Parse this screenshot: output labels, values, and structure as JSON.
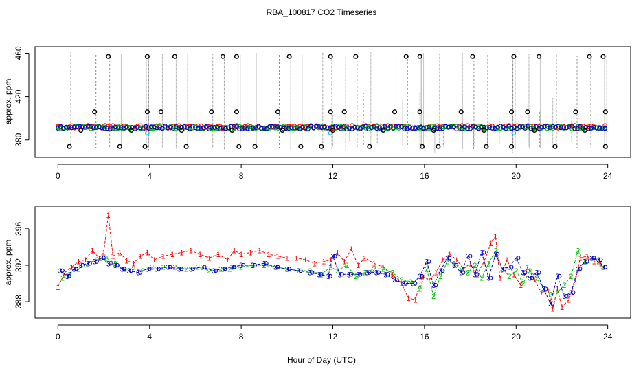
{
  "title": "RBA_100817  CO2 Timeseries",
  "xlabel": "Hour of Day (UTC)",
  "colors": {
    "series1": "#ff0000",
    "series2": "#00c000",
    "series3": "#0000cc",
    "outlier": "#000000",
    "cyan": "#00c8dc",
    "bars": "#888888"
  },
  "chart_data": [
    {
      "type": "scatter",
      "ylabel": "approx. ppm",
      "xlim": [
        -1,
        25
      ],
      "ylim": [
        364,
        466
      ],
      "xticks": [
        0,
        4,
        8,
        12,
        16,
        20,
        24
      ],
      "yticks": [
        380,
        420,
        460
      ],
      "outliers_high_hours": [
        2.2,
        3.9,
        5.1,
        7.2,
        7.8,
        10.1,
        11.9,
        13.0,
        15.2,
        15.8,
        18.1,
        19.9,
        21.0,
        23.2,
        23.8
      ],
      "outliers_mid_hours": [
        1.6,
        3.9,
        4.5,
        6.7,
        7.8,
        9.6,
        11.9,
        12.5,
        14.7,
        15.8,
        17.6,
        19.8,
        20.5,
        22.6,
        23.9
      ],
      "outliers_low_hours": [
        0.5,
        2.7,
        3.8,
        5.6,
        7.9,
        8.6,
        10.6,
        11.5,
        13.6,
        15.9,
        16.6,
        18.7,
        19.8,
        21.7,
        23.9
      ],
      "outlier_high_value": 457,
      "outlier_mid_value": 406,
      "outlier_low_value": 374,
      "baseline_value": 391.5
    },
    {
      "type": "line",
      "ylabel": "approx. ppm",
      "xlim": [
        -1,
        25
      ],
      "ylim": [
        386.2,
        398.4
      ],
      "xticks": [
        0,
        4,
        8,
        12,
        16,
        20,
        24
      ],
      "yticks": [
        388,
        392,
        396
      ],
      "series": [
        {
          "name": "1",
          "label_char": "1",
          "x": [
            0.0,
            0.3,
            0.6,
            0.9,
            1.2,
            1.5,
            1.8,
            2.0,
            2.2,
            2.4,
            2.7,
            3.0,
            3.3,
            3.6,
            3.9,
            4.2,
            4.6,
            5.0,
            5.4,
            5.8,
            6.2,
            6.6,
            7.0,
            7.4,
            7.7,
            8.0,
            8.4,
            8.8,
            9.2,
            9.6,
            10.0,
            10.4,
            10.8,
            11.2,
            11.6,
            11.9,
            12.2,
            12.5,
            12.8,
            13.1,
            13.4,
            13.8,
            14.2,
            14.6,
            15.0,
            15.3,
            15.6,
            15.9,
            16.2,
            16.5,
            16.8,
            17.1,
            17.4,
            17.7,
            18.0,
            18.3,
            18.6,
            18.9,
            19.1,
            19.3,
            19.6,
            19.9,
            20.2,
            20.5,
            20.8,
            21.1,
            21.4,
            21.6,
            21.8,
            22.0,
            22.3,
            22.6,
            22.8,
            23.1,
            23.4,
            23.7
          ],
          "y": [
            389.6,
            391.2,
            391.8,
            392.4,
            392.6,
            393.6,
            392.8,
            393.4,
            397.5,
            393.0,
            393.4,
            392.5,
            392.2,
            393.0,
            393.4,
            392.6,
            393.0,
            393.2,
            393.4,
            393.6,
            393.2,
            392.8,
            393.2,
            392.6,
            393.6,
            393.2,
            393.4,
            393.6,
            393.2,
            393.0,
            392.8,
            392.8,
            392.6,
            392.2,
            392.4,
            392.6,
            393.4,
            392.4,
            393.8,
            392.0,
            392.8,
            392.2,
            391.8,
            391.0,
            390.0,
            388.4,
            388.2,
            390.8,
            390.4,
            391.2,
            392.6,
            393.2,
            392.6,
            391.6,
            392.2,
            391.0,
            392.4,
            394.4,
            395.2,
            390.6,
            392.6,
            391.0,
            389.8,
            391.8,
            390.4,
            389.0,
            389.2,
            387.2,
            389.4,
            387.4,
            388.2,
            390.4,
            392.8,
            393.0,
            392.4,
            392.2
          ]
        },
        {
          "name": "2",
          "label_char": "2",
          "x": [
            0.2,
            0.5,
            0.9,
            1.3,
            1.7,
            2.1,
            2.5,
            2.9,
            3.3,
            3.7,
            4.1,
            4.6,
            5.1,
            5.6,
            6.1,
            6.6,
            7.1,
            7.5,
            8.0,
            8.5,
            9.0,
            9.5,
            10.0,
            10.5,
            11.0,
            11.5,
            11.9,
            12.2,
            12.6,
            13.0,
            13.4,
            13.8,
            14.2,
            14.6,
            15.0,
            15.4,
            15.8,
            16.1,
            16.4,
            16.7,
            17.0,
            17.3,
            17.6,
            17.9,
            18.2,
            18.5,
            18.8,
            19.1,
            19.4,
            19.7,
            20.0,
            20.3,
            20.6,
            20.9,
            21.2,
            21.5,
            21.8,
            22.1,
            22.4,
            22.7,
            23.0,
            23.3,
            23.6,
            23.8
          ],
          "y": [
            390.6,
            391.0,
            391.6,
            392.2,
            392.6,
            392.8,
            392.2,
            391.6,
            391.6,
            391.4,
            391.8,
            391.8,
            391.8,
            391.6,
            391.8,
            391.4,
            391.6,
            391.6,
            391.8,
            392.0,
            392.0,
            391.8,
            391.6,
            391.4,
            391.4,
            391.0,
            391.8,
            391.4,
            392.0,
            390.8,
            391.2,
            391.6,
            391.6,
            391.2,
            390.4,
            390.2,
            389.4,
            391.6,
            388.6,
            390.8,
            392.4,
            392.2,
            391.6,
            391.2,
            392.0,
            390.6,
            392.2,
            393.6,
            391.6,
            390.8,
            391.4,
            390.0,
            391.4,
            390.6,
            389.4,
            388.8,
            389.0,
            389.8,
            390.8,
            393.6,
            392.4,
            392.8,
            392.4,
            391.8
          ]
        },
        {
          "name": "3",
          "label_char": "3",
          "x": [
            0.1,
            0.4,
            0.7,
            1.0,
            1.3,
            1.6,
            1.9,
            2.2,
            2.5,
            2.8,
            3.1,
            3.5,
            3.9,
            4.3,
            4.8,
            5.3,
            5.8,
            6.3,
            6.8,
            7.2,
            7.6,
            8.0,
            8.5,
            9.0,
            9.5,
            10.0,
            10.5,
            11.0,
            11.4,
            11.8,
            12.0,
            12.3,
            12.7,
            13.1,
            13.5,
            13.9,
            14.3,
            14.7,
            15.1,
            15.5,
            15.8,
            16.1,
            16.4,
            16.7,
            17.0,
            17.3,
            17.6,
            17.9,
            18.2,
            18.5,
            18.8,
            19.1,
            19.4,
            19.7,
            20.0,
            20.3,
            20.6,
            20.9,
            21.2,
            21.5,
            21.8,
            22.1,
            22.4,
            22.7,
            23.0,
            23.3,
            23.6,
            23.8
          ],
          "y": [
            391.4,
            390.8,
            391.6,
            392.0,
            392.2,
            392.4,
            392.8,
            392.2,
            392.0,
            391.6,
            391.4,
            391.2,
            391.6,
            391.6,
            391.8,
            391.6,
            391.6,
            391.8,
            391.4,
            391.6,
            391.8,
            392.0,
            392.0,
            392.2,
            391.8,
            391.6,
            391.4,
            391.2,
            391.0,
            390.8,
            393.0,
            391.0,
            391.0,
            391.0,
            391.2,
            391.2,
            391.0,
            390.4,
            390.0,
            390.0,
            390.8,
            392.4,
            389.8,
            391.4,
            392.8,
            392.0,
            391.2,
            393.0,
            391.0,
            393.4,
            390.6,
            393.2,
            391.6,
            391.8,
            392.8,
            391.2,
            390.6,
            391.2,
            389.4,
            387.8,
            390.8,
            388.6,
            389.0,
            391.6,
            392.4,
            392.8,
            392.6,
            391.8
          ]
        }
      ]
    }
  ]
}
